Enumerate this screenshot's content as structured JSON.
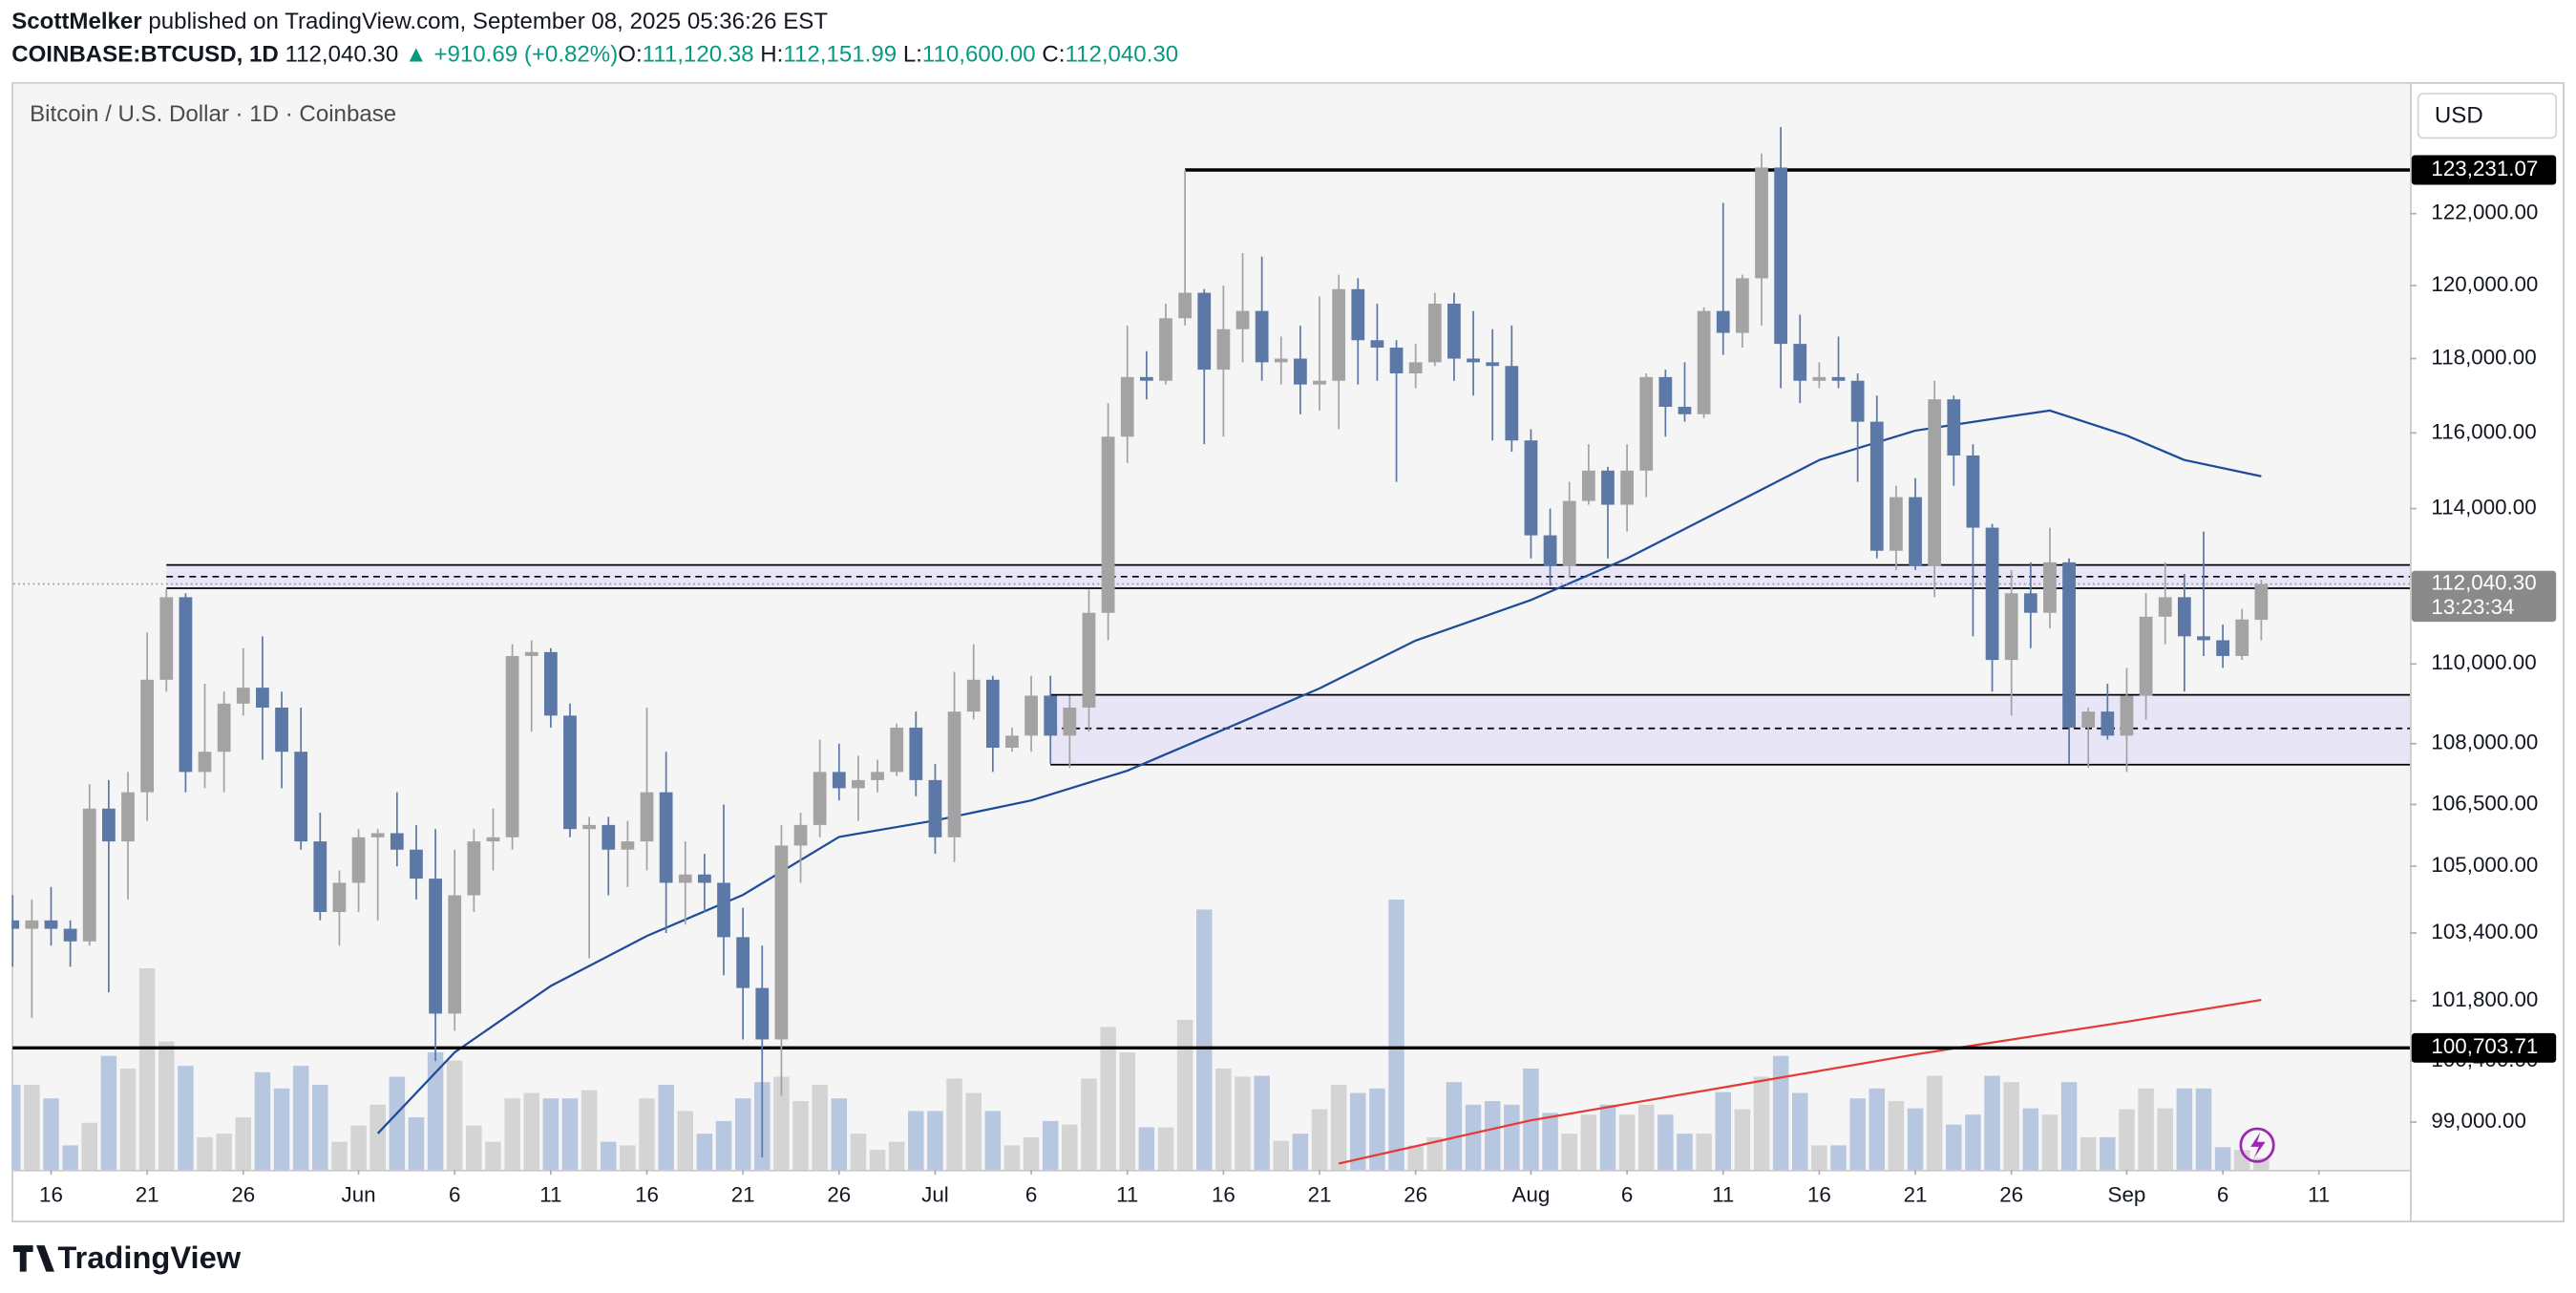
{
  "header": {
    "author": "ScottMelker",
    "published": "published on TradingView.com, September 08, 2025 05:36:26 EST",
    "symbol": "COINBASE:BTCUSD, 1D",
    "last": "112,040.30",
    "change": "▲ +910.69 (+0.82%)",
    "open_label": "O:",
    "open": "111,120.38",
    "high_label": "H:",
    "high": "112,151.99",
    "low_label": "L:",
    "low": "110,600.00",
    "close_label": "C:",
    "close": "112,040.30",
    "legend": "Bitcoin / U.S. Dollar · 1D · Coinbase",
    "currency": "USD",
    "brand": "TradingView"
  },
  "chart_data": {
    "type": "candlestick",
    "log_scale": true,
    "categories": [
      "May 14",
      "May 15",
      "May 16",
      "May 17",
      "May 18",
      "May 19",
      "May 20",
      "May 21",
      "May 22",
      "May 23",
      "May 24",
      "May 25",
      "May 26",
      "May 27",
      "May 28",
      "May 29",
      "May 30",
      "May 31",
      "Jun 1",
      "Jun 2",
      "Jun 3",
      "Jun 4",
      "Jun 5",
      "Jun 6",
      "Jun 7",
      "Jun 8",
      "Jun 9",
      "Jun 10",
      "Jun 11",
      "Jun 12",
      "Jun 13",
      "Jun 14",
      "Jun 15",
      "Jun 16",
      "Jun 17",
      "Jun 18",
      "Jun 19",
      "Jun 20",
      "Jun 21",
      "Jun 22",
      "Jun 23",
      "Jun 24",
      "Jun 25",
      "Jun 26",
      "Jun 27",
      "Jun 28",
      "Jun 29",
      "Jun 30",
      "Jul 1",
      "Jul 2",
      "Jul 3",
      "Jul 4",
      "Jul 5",
      "Jul 6",
      "Jul 7",
      "Jul 8",
      "Jul 9",
      "Jul 10",
      "Jul 11",
      "Jul 12",
      "Jul 13",
      "Jul 14",
      "Jul 15",
      "Jul 16",
      "Jul 17",
      "Jul 18",
      "Jul 19",
      "Jul 20",
      "Jul 21",
      "Jul 22",
      "Jul 23",
      "Jul 24",
      "Jul 25",
      "Jul 26",
      "Jul 27",
      "Jul 28",
      "Jul 29",
      "Jul 30",
      "Jul 31",
      "Aug 1",
      "Aug 2",
      "Aug 3",
      "Aug 4",
      "Aug 5",
      "Aug 6",
      "Aug 7",
      "Aug 8",
      "Aug 9",
      "Aug 10",
      "Aug 11",
      "Aug 12",
      "Aug 13",
      "Aug 14",
      "Aug 15",
      "Aug 16",
      "Aug 17",
      "Aug 18",
      "Aug 19",
      "Aug 20",
      "Aug 21",
      "Aug 22",
      "Aug 23",
      "Aug 24",
      "Aug 25",
      "Aug 26",
      "Aug 27",
      "Aug 28",
      "Aug 29",
      "Aug 30",
      "Aug 31",
      "Sep 1",
      "Sep 2",
      "Sep 3",
      "Sep 4",
      "Sep 5",
      "Sep 6",
      "Sep 7",
      "Sep 8"
    ],
    "open": [
      103700,
      103500,
      103700,
      103500,
      103200,
      106400,
      105600,
      106800,
      109600,
      111700,
      107300,
      107800,
      109000,
      109400,
      108900,
      107800,
      105600,
      103900,
      104600,
      105700,
      105800,
      105400,
      104700,
      101500,
      104300,
      105600,
      105700,
      110200,
      110300,
      108700,
      105900,
      106000,
      105400,
      105600,
      106800,
      104600,
      104800,
      104600,
      103300,
      102100,
      100900,
      105500,
      106000,
      107300,
      106900,
      107100,
      107300,
      108400,
      107100,
      105700,
      108800,
      109600,
      107900,
      108200,
      109200,
      108200,
      108900,
      111300,
      115900,
      117500,
      117400,
      119100,
      119800,
      117700,
      118800,
      119300,
      117900,
      118000,
      117300,
      117400,
      119900,
      118500,
      118300,
      117600,
      117900,
      119500,
      118000,
      117900,
      117800,
      115800,
      113300,
      112500,
      114200,
      115000,
      114100,
      115000,
      117500,
      116700,
      116500,
      119300,
      118700,
      120200,
      123300,
      118400,
      117400,
      117500,
      117400,
      116300,
      112900,
      114300,
      112500,
      116900,
      115400,
      113500,
      110100,
      111800,
      111300,
      112600,
      108400,
      108800,
      108200,
      109200,
      111200,
      111700,
      110700,
      110600,
      110200,
      111120.38
    ],
    "high": [
      104300,
      104200,
      104500,
      103700,
      107000,
      107100,
      107300,
      110800,
      111900,
      111800,
      109500,
      109300,
      110400,
      110700,
      109300,
      108900,
      106300,
      104900,
      105900,
      105900,
      106800,
      106000,
      105900,
      105400,
      105900,
      106400,
      110500,
      110600,
      110400,
      109000,
      106200,
      106200,
      106100,
      108900,
      107800,
      105600,
      105300,
      106500,
      104000,
      103100,
      106000,
      106300,
      108100,
      108000,
      107700,
      107600,
      108500,
      108800,
      107500,
      109800,
      110500,
      109700,
      108400,
      109700,
      109700,
      109200,
      111900,
      116800,
      118900,
      118200,
      119500,
      123231.07,
      119900,
      120000,
      120900,
      120800,
      118600,
      118900,
      119700,
      120300,
      120200,
      119500,
      118500,
      118400,
      119800,
      119800,
      119300,
      118800,
      118900,
      116100,
      114000,
      114700,
      115700,
      115100,
      115700,
      117600,
      117700,
      117900,
      119400,
      122300,
      120300,
      123700,
      124450,
      119200,
      117900,
      118600,
      117600,
      117000,
      114600,
      114800,
      117400,
      117000,
      115700,
      113600,
      112400,
      112600,
      113500,
      112700,
      108900,
      109500,
      109900,
      111800,
      112600,
      112300,
      113400,
      111000,
      111400,
      112151.99
    ],
    "low": [
      102600,
      101400,
      103100,
      102600,
      103100,
      102000,
      104200,
      106100,
      109300,
      106800,
      106900,
      106800,
      108700,
      107600,
      106900,
      105400,
      103700,
      103100,
      103900,
      103700,
      105000,
      104200,
      100400,
      101100,
      103900,
      104900,
      105400,
      108300,
      108400,
      105700,
      102800,
      104300,
      104500,
      104900,
      103400,
      103600,
      103900,
      102400,
      100900,
      98200,
      99600,
      104600,
      105700,
      106600,
      106100,
      106800,
      107200,
      106700,
      105300,
      105100,
      108600,
      107300,
      107800,
      107800,
      107500,
      107400,
      108300,
      110600,
      115200,
      116900,
      117300,
      118900,
      115700,
      115900,
      117900,
      117400,
      117300,
      116500,
      116600,
      116100,
      117300,
      117400,
      114700,
      117200,
      117800,
      117400,
      117000,
      115800,
      115500,
      112700,
      112000,
      112200,
      114100,
      112700,
      113400,
      114300,
      115900,
      116300,
      116400,
      118100,
      118300,
      118900,
      117200,
      116800,
      117200,
      117200,
      114700,
      112700,
      112400,
      112400,
      111700,
      114600,
      110700,
      109300,
      108700,
      110400,
      110900,
      107500,
      107400,
      108100,
      107300,
      108600,
      110500,
      109300,
      110200,
      109900,
      110100,
      110600
    ],
    "close": [
      103500,
      103700,
      103500,
      103200,
      106400,
      105600,
      106800,
      109600,
      111700,
      107300,
      107800,
      109000,
      109400,
      108900,
      107800,
      105600,
      103900,
      104600,
      105700,
      105800,
      105400,
      104700,
      101500,
      104300,
      105600,
      105700,
      110200,
      110300,
      108700,
      105900,
      106000,
      105400,
      105600,
      106800,
      104600,
      104800,
      104600,
      103300,
      102100,
      100900,
      105500,
      106000,
      107300,
      106900,
      107100,
      107300,
      108400,
      107100,
      105700,
      108800,
      109600,
      107900,
      108200,
      109200,
      108200,
      108900,
      111300,
      115900,
      117500,
      117400,
      119100,
      119800,
      117700,
      118800,
      119300,
      117900,
      118000,
      117300,
      117400,
      119900,
      118500,
      118300,
      117600,
      117900,
      119500,
      118000,
      117900,
      117800,
      115800,
      113300,
      112500,
      114200,
      115000,
      114100,
      115000,
      117500,
      116700,
      116500,
      119300,
      118700,
      120200,
      123300,
      118400,
      117400,
      117500,
      117400,
      116300,
      112900,
      114300,
      112500,
      116900,
      115400,
      113500,
      110100,
      111800,
      111300,
      112600,
      108400,
      108800,
      108200,
      109200,
      111200,
      111700,
      110700,
      110600,
      110200,
      111129.61,
      112040.3
    ],
    "volume": [
      9400,
      9400,
      7900,
      2700,
      5200,
      12600,
      11200,
      22300,
      14200,
      11500,
      3600,
      4000,
      5800,
      10800,
      9000,
      11500,
      9400,
      3100,
      4900,
      7200,
      10300,
      5800,
      13000,
      12100,
      4900,
      3100,
      7900,
      8500,
      7900,
      7900,
      8800,
      3100,
      2700,
      7900,
      9400,
      6500,
      4000,
      5400,
      7900,
      9700,
      10300,
      7600,
      9400,
      7900,
      4000,
      2200,
      3100,
      6500,
      6500,
      10100,
      8500,
      6500,
      2700,
      3600,
      5400,
      5000,
      10100,
      15800,
      13000,
      4700,
      4700,
      16600,
      28800,
      11200,
      10300,
      10400,
      3200,
      4000,
      6700,
      9400,
      8500,
      9000,
      29900,
      2700,
      3600,
      9700,
      7200,
      7600,
      7200,
      11200,
      6300,
      4000,
      6100,
      7200,
      6100,
      7200,
      6100,
      4000,
      4000,
      8600,
      6700,
      10300,
      12600,
      8500,
      2700,
      2700,
      7900,
      9000,
      7600,
      6800,
      10400,
      5000,
      6100,
      10400,
      9700,
      6800,
      6100,
      9700,
      3600,
      3600,
      6700,
      9000,
      6800,
      9000,
      9000,
      2500,
      2200,
      1300
    ],
    "volume_lim": [
      0,
      120000
    ],
    "up_color": "#a3a3a3",
    "down_color": "#5b78a7",
    "volume_up_color": "#d4d4d4",
    "volume_down_color": "#b8c7e0",
    "ylim": [
      97920,
      125650
    ],
    "yticks": [
      {
        "value": 122000,
        "label": "122,000.00"
      },
      {
        "value": 120000,
        "label": "120,000.00"
      },
      {
        "value": 118000,
        "label": "118,000.00"
      },
      {
        "value": 116000,
        "label": "116,000.00"
      },
      {
        "value": 114000,
        "label": "114,000.00"
      },
      {
        "value": 110000,
        "label": "110,000.00"
      },
      {
        "value": 108000,
        "label": "108,000.00"
      },
      {
        "value": 106500,
        "label": "106,500.00"
      },
      {
        "value": 105000,
        "label": "105,000.00"
      },
      {
        "value": 103400,
        "label": "103,400.00"
      },
      {
        "value": 101800,
        "label": "101,800.00"
      },
      {
        "value": 100400,
        "label": "100,400.00"
      },
      {
        "value": 99000,
        "label": "99,000.00"
      }
    ],
    "xticks": [
      {
        "value": "May 16",
        "label": "16"
      },
      {
        "value": "May 21",
        "label": "21"
      },
      {
        "value": "May 26",
        "label": "26"
      },
      {
        "value": "Jun 1",
        "label": "Jun"
      },
      {
        "value": "Jun 6",
        "label": "6"
      },
      {
        "value": "Jun 11",
        "label": "11"
      },
      {
        "value": "Jun 16",
        "label": "16"
      },
      {
        "value": "Jun 21",
        "label": "21"
      },
      {
        "value": "Jun 26",
        "label": "26"
      },
      {
        "value": "Jul 1",
        "label": "Jul"
      },
      {
        "value": "Jul 6",
        "label": "6"
      },
      {
        "value": "Jul 11",
        "label": "11"
      },
      {
        "value": "Jul 16",
        "label": "16"
      },
      {
        "value": "Jul 21",
        "label": "21"
      },
      {
        "value": "Jul 26",
        "label": "26"
      },
      {
        "value": "Aug 1",
        "label": "Aug"
      },
      {
        "value": "Aug 6",
        "label": "6"
      },
      {
        "value": "Aug 11",
        "label": "11"
      },
      {
        "value": "Aug 16",
        "label": "16"
      },
      {
        "value": "Aug 21",
        "label": "21"
      },
      {
        "value": "Aug 26",
        "label": "26"
      },
      {
        "value": "Sep 1",
        "label": "Sep"
      },
      {
        "value": "Sep 6",
        "label": "6"
      },
      {
        "value": "Sep 11",
        "label": "11"
      }
    ],
    "indicators": [
      {
        "color": "#1e4b99",
        "x": [
          "Jun 2",
          "Jun 6",
          "Jun 11",
          "Jun 16",
          "Jun 21",
          "Jun 26",
          "Jul 1",
          "Jul 6",
          "Jul 11",
          "Jul 16",
          "Jul 21",
          "Jul 26",
          "Aug 1",
          "Aug 6",
          "Aug 11",
          "Aug 16",
          "Aug 21",
          "Aug 26",
          "Aug 28",
          "Sep 1",
          "Sep 4",
          "Sep 8"
        ],
        "values": [
          98740,
          100600,
          102150,
          103330,
          104310,
          105710,
          106110,
          106600,
          107330,
          108350,
          109380,
          110590,
          111630,
          112700,
          113980,
          115280,
          116060,
          116450,
          116600,
          115930,
          115280,
          114850
        ]
      },
      {
        "color": "#e53935",
        "x": [
          "Jul 22",
          "Aug 1",
          "Aug 11",
          "Aug 21",
          "Sep 1",
          "Sep 8"
        ],
        "values": [
          98060,
          99040,
          99790,
          100550,
          101310,
          101820
        ]
      }
    ],
    "levels": [
      {
        "value": 123231.07,
        "label": "123,231.07",
        "start": "Jul 14"
      },
      {
        "value": 100703.71,
        "label": "100,703.71",
        "start": "May 14"
      }
    ],
    "zones": [
      {
        "high": 112530,
        "mid": 112230,
        "low": 111930,
        "start": "May 22",
        "color": "#e8e6f6"
      },
      {
        "high": 109220,
        "mid": 108380,
        "low": 107480,
        "start": "Jul 7",
        "color": "#e8e6f6"
      }
    ],
    "last_price": {
      "value": 112040.3,
      "label": "112,040.30",
      "countdown": "13:23:34"
    }
  }
}
